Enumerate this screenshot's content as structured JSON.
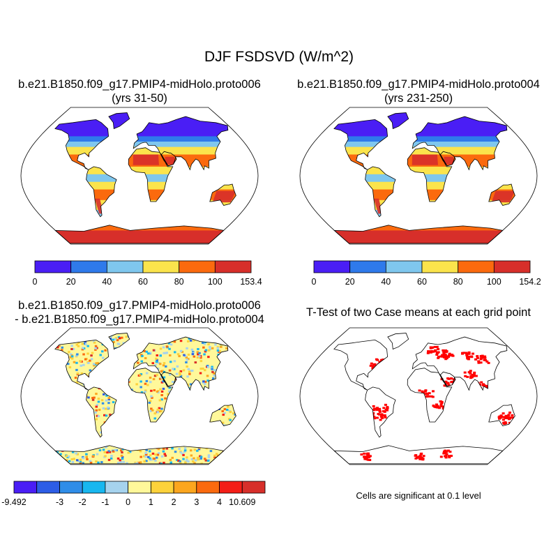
{
  "figure": {
    "title": "DJF FSDSVD (W/m^2)"
  },
  "panels": [
    {
      "id": "case1",
      "title_line1": "b.e21.B1850.f09_g17.PMIP4-midHolo.proto006",
      "title_line2": "(yrs 31-50)",
      "colorbar": {
        "colors": [
          "#4a1ef5",
          "#2f7aeb",
          "#7fc7ee",
          "#fbe44c",
          "#fb6a0e",
          "#d72f2a"
        ],
        "labels": [
          "0",
          "20",
          "40",
          "60",
          "80",
          "100",
          "153.4"
        ]
      }
    },
    {
      "id": "case2",
      "title_line1": "b.e21.B1850.f09_g17.PMIP4-midHolo.proto004",
      "title_line2": "(yrs 231-250)",
      "colorbar": {
        "colors": [
          "#4a1ef5",
          "#2f7aeb",
          "#7fc7ee",
          "#fbe44c",
          "#fb6a0e",
          "#d72f2a"
        ],
        "labels": [
          "0",
          "20",
          "40",
          "60",
          "80",
          "100",
          "154.2"
        ]
      }
    },
    {
      "id": "difference",
      "title_line1": "b.e21.B1850.f09_g17.PMIP4-midHolo.proto006",
      "title_line2": "- b.e21.B1850.f09_g17.PMIP4-midHolo.proto004",
      "colorbar": {
        "colors": [
          "#4a1ef5",
          "#2d5de6",
          "#2f8de8",
          "#18b7ef",
          "#a6d3ee",
          "#fff89a",
          "#fdd23b",
          "#fca61e",
          "#fb6a0e",
          "#f41e17",
          "#d72f2a"
        ],
        "labels": [
          "-9.492",
          "",
          "-3",
          "-2",
          "-1",
          "0",
          "1",
          "2",
          "3",
          "4",
          "10.609"
        ]
      }
    },
    {
      "id": "ttest",
      "title_line1": "T-Test of two Case means at each grid point",
      "note": "Cells are significant at 0.1 level",
      "significant_color": "#ff0000"
    }
  ]
}
